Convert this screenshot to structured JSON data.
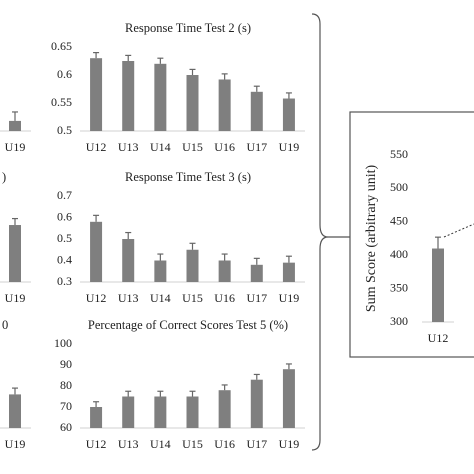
{
  "chart_data": [
    {
      "type": "bar",
      "categories": [
        "U19"
      ],
      "values": [
        0.518
      ],
      "errors": [
        0.016
      ],
      "ylim": [
        0.5,
        0.65
      ],
      "color": "#7f7f7f"
    },
    {
      "type": "bar",
      "title": ")",
      "categories": [
        "U19"
      ],
      "values": [
        0.565
      ],
      "errors": [
        0.03
      ],
      "ylim": [
        0.3,
        0.7
      ],
      "color": "#7f7f7f"
    },
    {
      "type": "bar",
      "title": "0",
      "categories": [
        "U19"
      ],
      "values": [
        76
      ],
      "errors": [
        3
      ],
      "ylim": [
        60,
        100
      ],
      "color": "#7f7f7f"
    },
    {
      "type": "bar",
      "title": "Response Time Test 2 (s)",
      "categories": [
        "U12",
        "U13",
        "U14",
        "U15",
        "U16",
        "U17",
        "U19"
      ],
      "values": [
        0.63,
        0.625,
        0.62,
        0.6,
        0.592,
        0.57,
        0.558
      ],
      "errors": [
        0.01,
        0.01,
        0.01,
        0.01,
        0.01,
        0.01,
        0.01
      ],
      "ylim": [
        0.5,
        0.65
      ],
      "yticks": [
        0.5,
        0.55,
        0.6,
        0.65
      ],
      "color": "#7f7f7f"
    },
    {
      "type": "bar",
      "title": "Response Time Test 3 (s)",
      "categories": [
        "U12",
        "U13",
        "U14",
        "U15",
        "U16",
        "U17",
        "U19"
      ],
      "values": [
        0.58,
        0.5,
        0.4,
        0.45,
        0.4,
        0.38,
        0.39
      ],
      "errors": [
        0.03,
        0.03,
        0.03,
        0.03,
        0.03,
        0.03,
        0.03
      ],
      "ylim": [
        0.3,
        0.7
      ],
      "yticks": [
        0.3,
        0.4,
        0.5,
        0.6,
        0.7
      ],
      "color": "#7f7f7f"
    },
    {
      "type": "bar",
      "title": "Percentage of Correct Scores Test 5 (%)",
      "categories": [
        "U12",
        "U13",
        "U14",
        "U15",
        "U16",
        "U17",
        "U19"
      ],
      "values": [
        70,
        75,
        75,
        75,
        78,
        83,
        88
      ],
      "errors": [
        2.5,
        2.5,
        2.5,
        2.5,
        2.5,
        2.5,
        2.5
      ],
      "ylim": [
        60,
        100
      ],
      "yticks": [
        60,
        70,
        80,
        90,
        100
      ],
      "color": "#7f7f7f"
    },
    {
      "type": "bar",
      "y_label": "Sum Score (arbitrary unit)",
      "categories": [
        "U12"
      ],
      "values": [
        410
      ],
      "errors": [
        17
      ],
      "ylim": [
        300,
        550
      ],
      "yticks": [
        300,
        350,
        400,
        450,
        500,
        550
      ],
      "color": "#7f7f7f"
    }
  ]
}
